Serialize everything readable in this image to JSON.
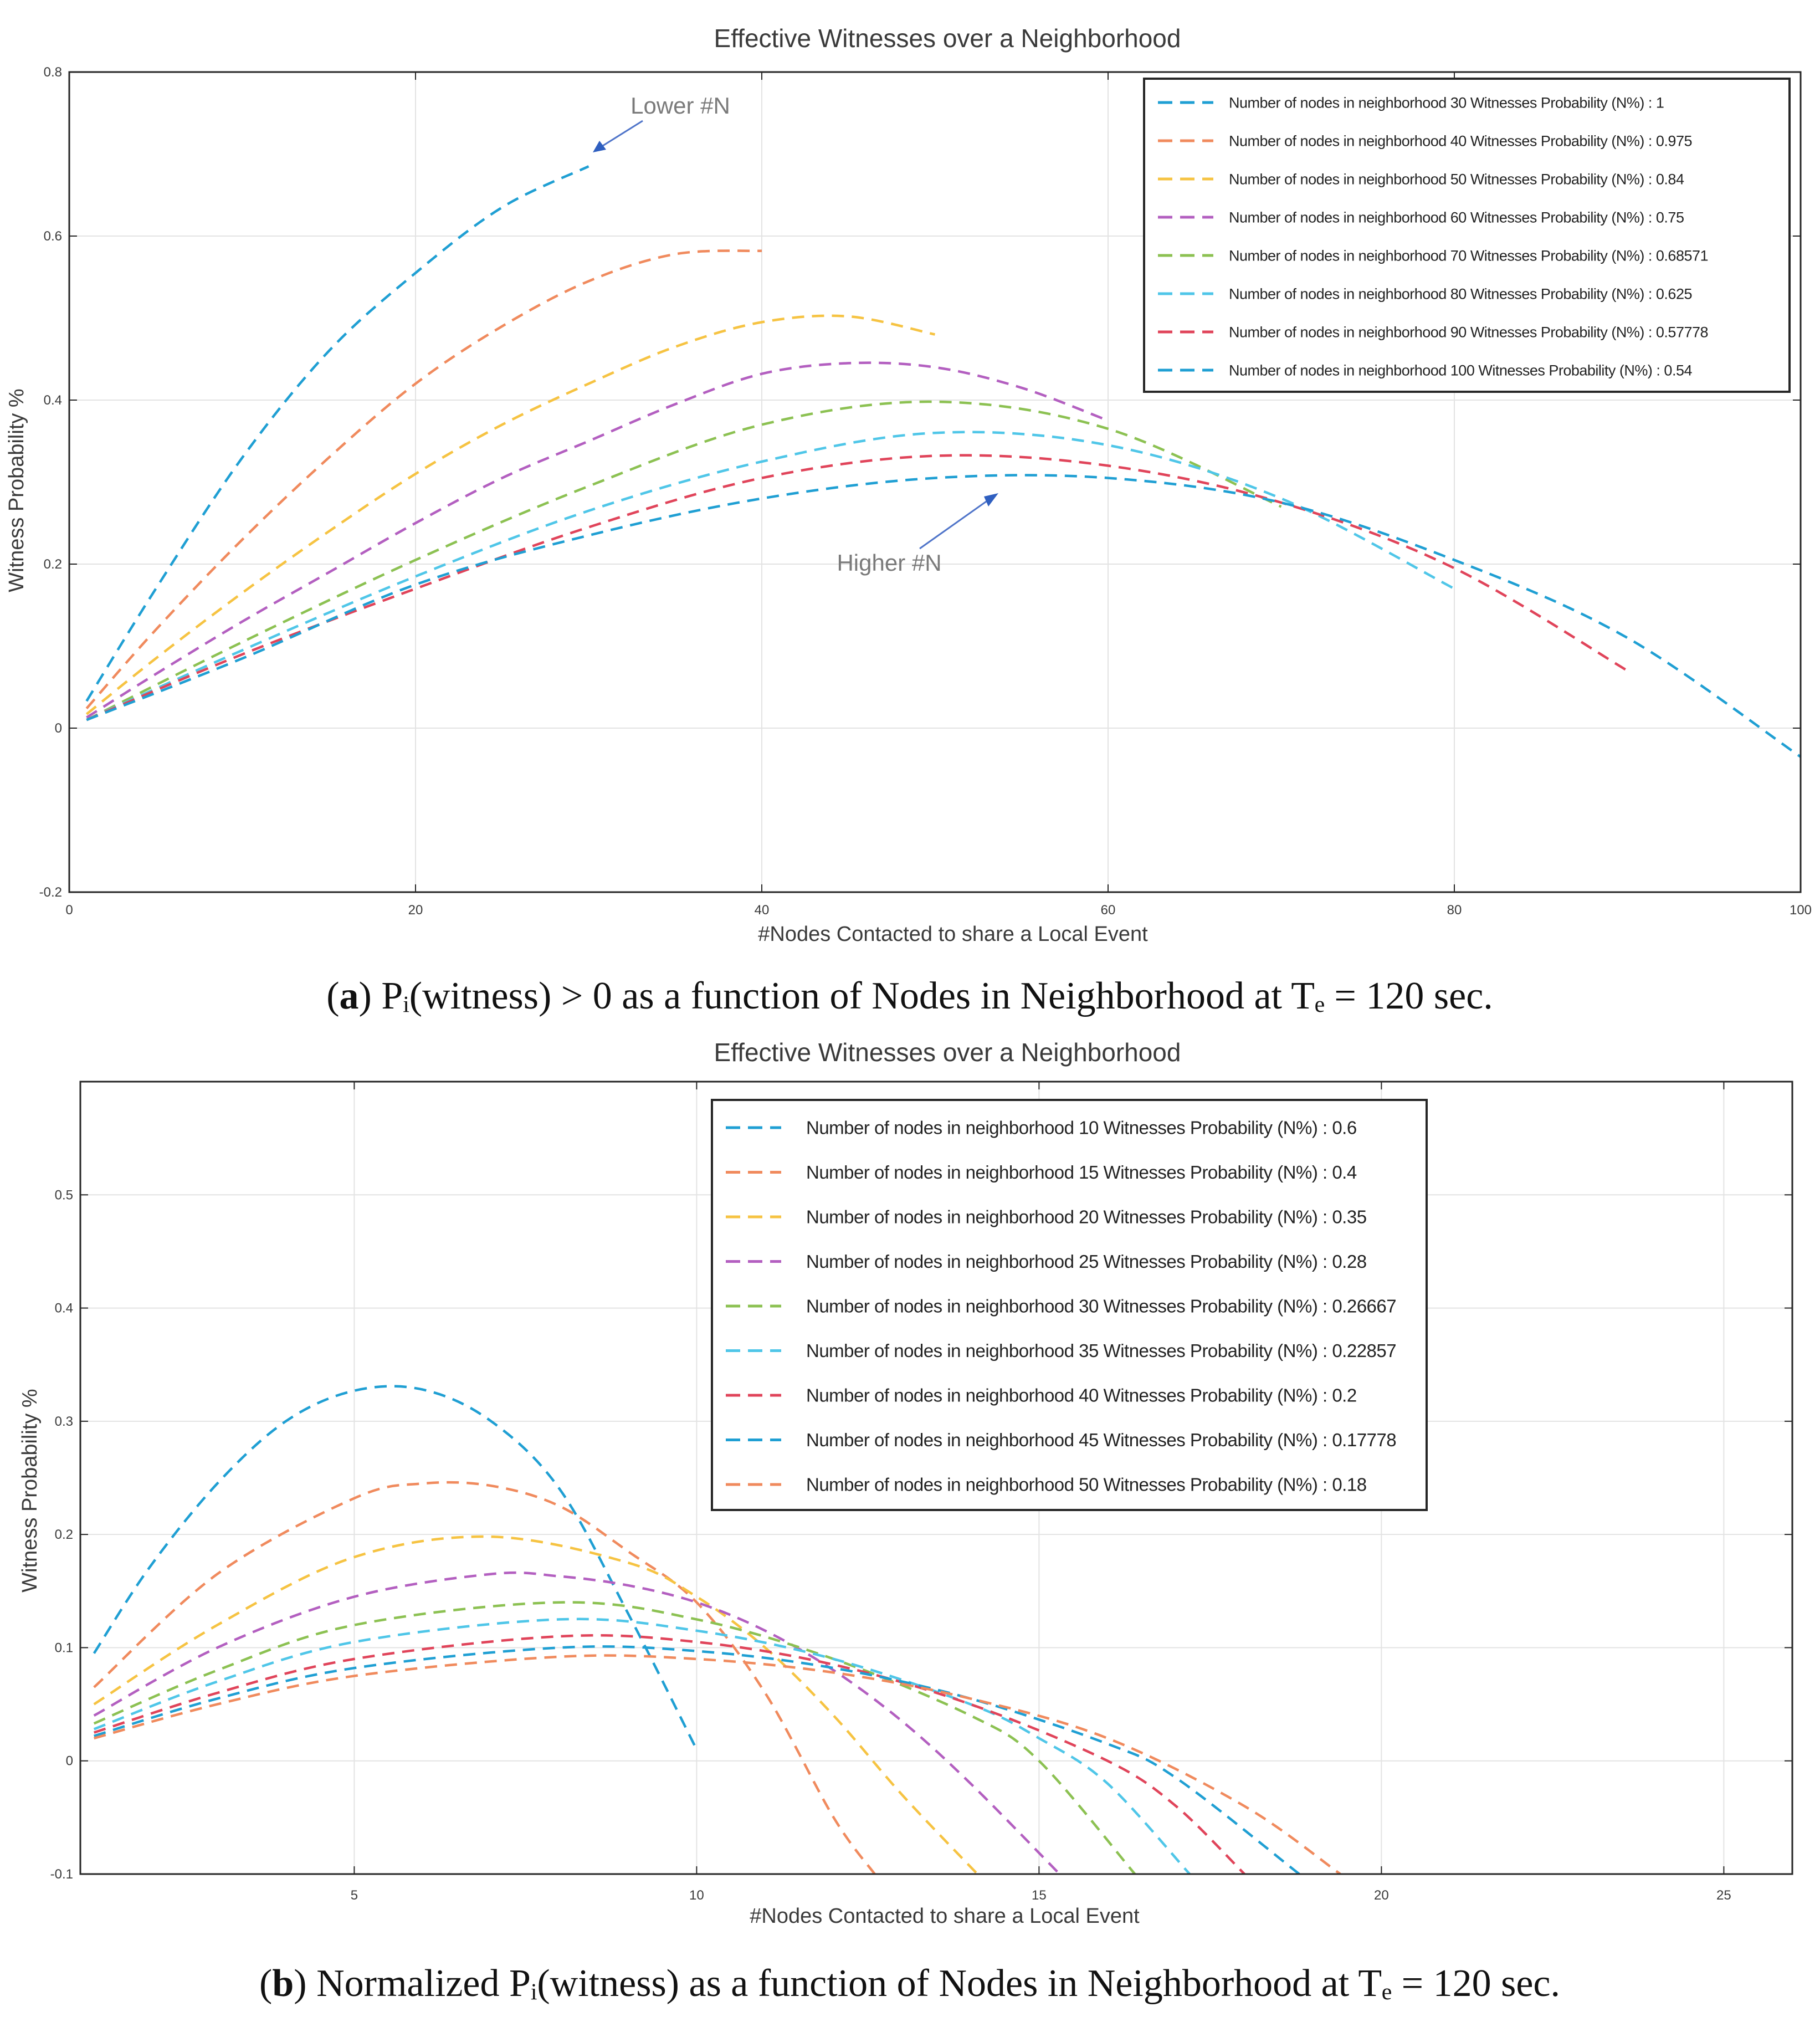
{
  "captions": {
    "a": {
      "letter": "a",
      "text": " Pᵢ(witness) > 0 as a function of Nodes in Neighborhood at Tₑ = 120 sec."
    },
    "b": {
      "letter": "b",
      "text": " Normalized Pᵢ(witness) as a function of Nodes in Neighborhood at Tₑ = 120 sec."
    }
  },
  "chart_data": [
    {
      "id": "a",
      "type": "line",
      "title": "Effective Witnesses over a Neighborhood",
      "xlabel": "#Nodes Contacted to share a Local Event",
      "ylabel": "Witness Probability %",
      "xlim": [
        0,
        100
      ],
      "ylim": [
        -0.2,
        0.8
      ],
      "xticks": [
        0,
        20,
        40,
        60,
        80,
        100
      ],
      "yticks": [
        -0.2,
        0,
        0.2,
        0.4,
        0.6,
        0.8
      ],
      "ytick_labels": [
        "-0.2",
        "0",
        "0.2",
        "0.4",
        "0.6",
        "0.8"
      ],
      "grid": true,
      "legend_position": "top-right",
      "annotations": [
        {
          "text": "Lower #N",
          "x": 35,
          "y": 0.76,
          "arrow_to": [
            30,
            0.7
          ]
        },
        {
          "text": "Higher #N",
          "x": 47,
          "y": 0.2,
          "arrow_to": [
            54,
            0.29
          ]
        }
      ],
      "series": [
        {
          "name": "Number of nodes in neighborhood 30 Witnesses Probability (N%) : 1",
          "color": "#1f9fd3",
          "x": [
            1,
            5,
            10,
            15,
            20,
            25,
            30
          ],
          "y": [
            0.033,
            0.17,
            0.33,
            0.46,
            0.555,
            0.635,
            0.685
          ]
        },
        {
          "name": "Number of nodes in neighborhood 40 Witnesses Probability (N%) : 0.975",
          "color": "#f08a5d",
          "x": [
            1,
            5,
            10,
            15,
            20,
            25,
            30,
            35,
            40
          ],
          "y": [
            0.024,
            0.12,
            0.23,
            0.33,
            0.42,
            0.49,
            0.545,
            0.578,
            0.582
          ]
        },
        {
          "name": "Number of nodes in neighborhood 50 Witnesses Probability (N%) : 0.84",
          "color": "#f6c342",
          "x": [
            1,
            5,
            10,
            15,
            20,
            25,
            30,
            35,
            40,
            45,
            50
          ],
          "y": [
            0.017,
            0.085,
            0.165,
            0.24,
            0.31,
            0.37,
            0.42,
            0.465,
            0.495,
            0.502,
            0.48
          ]
        },
        {
          "name": "Number of nodes in neighborhood 60 Witnesses Probability (N%) : 0.75",
          "color": "#b35fc0",
          "x": [
            1,
            5,
            10,
            15,
            20,
            25,
            30,
            35,
            40,
            45,
            50,
            55,
            60
          ],
          "y": [
            0.013,
            0.066,
            0.13,
            0.19,
            0.25,
            0.305,
            0.35,
            0.395,
            0.432,
            0.445,
            0.44,
            0.415,
            0.375
          ]
        },
        {
          "name": "Number of nodes in neighborhood 70 Witnesses Probability (N%) : 0.68571",
          "color": "#8cc152",
          "x": [
            1,
            10,
            20,
            30,
            40,
            50,
            60,
            70
          ],
          "y": [
            0.01,
            0.105,
            0.205,
            0.295,
            0.37,
            0.398,
            0.365,
            0.27
          ]
        },
        {
          "name": "Number of nodes in neighborhood 80 Witnesses Probability (N%) : 0.625",
          "color": "#4fc6e8",
          "x": [
            1,
            10,
            20,
            30,
            40,
            50,
            60,
            70,
            80
          ],
          "y": [
            0.01,
            0.095,
            0.185,
            0.265,
            0.325,
            0.36,
            0.345,
            0.28,
            0.17
          ]
        },
        {
          "name": "Number of nodes in neighborhood 90 Witnesses Probability (N%) : 0.57778",
          "color": "#e0445a",
          "x": [
            1,
            10,
            20,
            30,
            40,
            50,
            60,
            70,
            80,
            90
          ],
          "y": [
            0.01,
            0.09,
            0.17,
            0.245,
            0.305,
            0.332,
            0.32,
            0.275,
            0.195,
            0.07
          ]
        },
        {
          "name": "Number of nodes in neighborhood 100 Witnesses Probability (N%) : 0.54",
          "color": "#1f9fd3",
          "x": [
            1,
            10,
            20,
            30,
            40,
            50,
            60,
            70,
            80,
            90,
            100
          ],
          "y": [
            0.01,
            0.085,
            0.175,
            0.235,
            0.28,
            0.305,
            0.305,
            0.275,
            0.205,
            0.11,
            -0.035
          ]
        }
      ]
    },
    {
      "id": "b",
      "type": "line",
      "title": "Effective Witnesses over a Neighborhood",
      "xlabel": "#Nodes Contacted to share a Local Event",
      "ylabel": "Witness Probability %",
      "xlim": [
        1,
        26
      ],
      "ylim": [
        -0.1,
        0.6
      ],
      "xticks": [
        5,
        10,
        15,
        20,
        25
      ],
      "yticks": [
        -0.1,
        0,
        0.1,
        0.2,
        0.3,
        0.4,
        0.5
      ],
      "ytick_labels": [
        "-0.1",
        "0",
        "0.1",
        "0.2",
        "0.3",
        "0.4",
        "0.5"
      ],
      "grid": true,
      "legend_position": "top-right",
      "series": [
        {
          "name": "Number of nodes in neighborhood 10 Witnesses Probability (N%) : 0.6",
          "color": "#1f9fd3",
          "x": [
            1.2,
            2,
            3,
            4,
            5,
            6,
            7,
            8,
            9,
            10
          ],
          "y": [
            0.095,
            0.17,
            0.245,
            0.3,
            0.327,
            0.328,
            0.3,
            0.24,
            0.13,
            0.01
          ]
        },
        {
          "name": "Number of nodes in neighborhood 15 Witnesses Probability (N%) : 0.4",
          "color": "#f08a5d",
          "x": [
            1.2,
            3,
            5,
            6,
            7,
            8,
            9,
            10,
            11,
            12,
            12.6
          ],
          "y": [
            0.065,
            0.165,
            0.232,
            0.245,
            0.243,
            0.225,
            0.185,
            0.14,
            0.06,
            -0.05,
            -0.1
          ]
        },
        {
          "name": "Number of nodes in neighborhood 20 Witnesses Probability (N%) : 0.35",
          "color": "#f6c342",
          "x": [
            1.2,
            3,
            5,
            7,
            9,
            10,
            11,
            12,
            13,
            14.1
          ],
          "y": [
            0.05,
            0.12,
            0.18,
            0.198,
            0.175,
            0.145,
            0.1,
            0.04,
            -0.03,
            -0.1
          ]
        },
        {
          "name": "Number of nodes in neighborhood 25 Witnesses Probability (N%) : 0.28",
          "color": "#b35fc0",
          "x": [
            1.2,
            3,
            5,
            7,
            8,
            9,
            10,
            11,
            12,
            13,
            14,
            15.3
          ],
          "y": [
            0.04,
            0.1,
            0.145,
            0.165,
            0.163,
            0.155,
            0.14,
            0.115,
            0.08,
            0.035,
            -0.02,
            -0.1
          ]
        },
        {
          "name": "Number of nodes in neighborhood 30 Witnesses Probability (N%) : 0.26667",
          "color": "#8cc152",
          "x": [
            1.2,
            3,
            5,
            8,
            10,
            12,
            14,
            15,
            16.4
          ],
          "y": [
            0.033,
            0.08,
            0.12,
            0.14,
            0.125,
            0.09,
            0.04,
            0.0,
            -0.1
          ]
        },
        {
          "name": "Number of nodes in neighborhood 35 Witnesses Probability (N%) : 0.22857",
          "color": "#4fc6e8",
          "x": [
            1.2,
            3,
            5,
            8,
            10,
            12,
            14,
            15,
            16,
            17.2
          ],
          "y": [
            0.028,
            0.07,
            0.105,
            0.125,
            0.115,
            0.09,
            0.05,
            0.02,
            -0.02,
            -0.1
          ]
        },
        {
          "name": "Number of nodes in neighborhood 40 Witnesses Probability (N%) : 0.2",
          "color": "#e0445a",
          "x": [
            1.2,
            3,
            5,
            8,
            10,
            12,
            14,
            16,
            17,
            18
          ],
          "y": [
            0.025,
            0.06,
            0.09,
            0.11,
            0.105,
            0.085,
            0.05,
            0.0,
            -0.04,
            -0.1
          ]
        },
        {
          "name": "Number of nodes in neighborhood 45 Witnesses Probability (N%) : 0.17778",
          "color": "#1f9fd3",
          "x": [
            1.2,
            3,
            5,
            8,
            10,
            12,
            14,
            16,
            17,
            18.8
          ],
          "y": [
            0.022,
            0.055,
            0.082,
            0.1,
            0.097,
            0.082,
            0.055,
            0.015,
            -0.015,
            -0.1
          ]
        },
        {
          "name": "Number of nodes in neighborhood 50 Witnesses Probability (N%) : 0.18",
          "color": "#f08a5d",
          "x": [
            1.2,
            3,
            5,
            8,
            10,
            12,
            14,
            16,
            18,
            19.4
          ],
          "y": [
            0.02,
            0.05,
            0.075,
            0.092,
            0.09,
            0.078,
            0.055,
            0.02,
            -0.04,
            -0.1
          ]
        }
      ]
    }
  ]
}
